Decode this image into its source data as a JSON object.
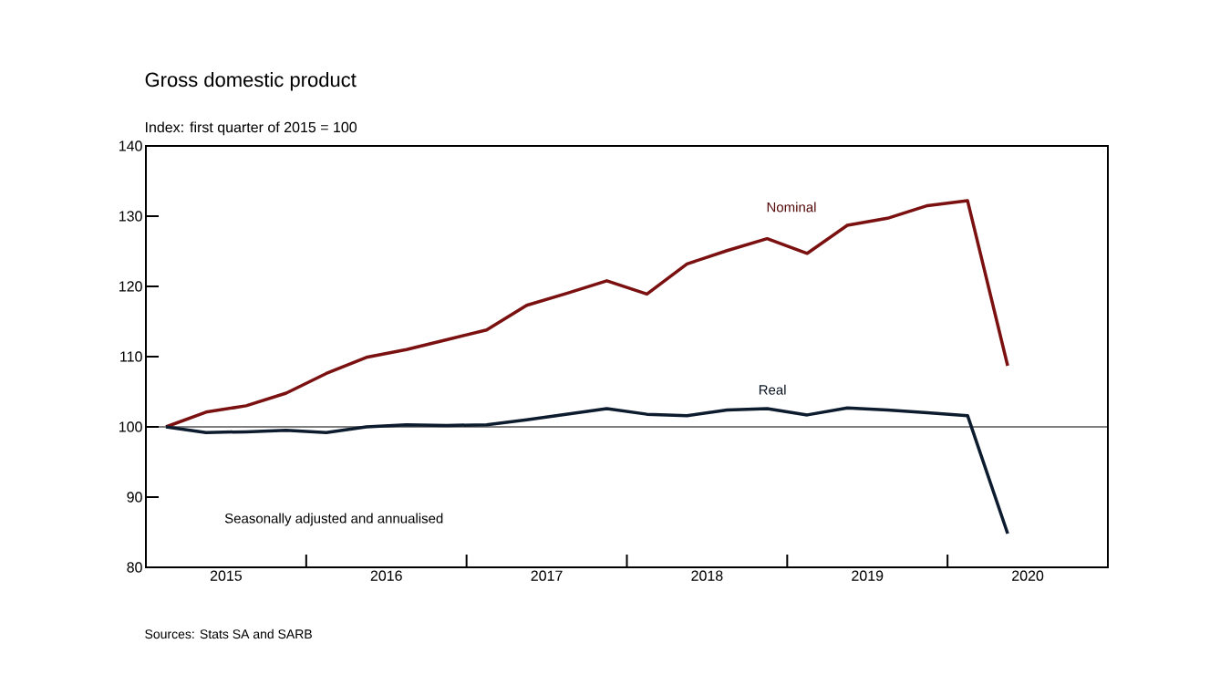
{
  "chart_data": {
    "type": "line",
    "title": "Gross domestic product",
    "subtitle": "Index: first quarter of 2015 = 100",
    "annotations": [
      "Seasonally adjusted and annualised",
      "Sources: Stats SA and SARB"
    ],
    "x": [
      2015.125,
      2015.375,
      2015.625,
      2015.875,
      2016.125,
      2016.375,
      2016.625,
      2016.875,
      2017.125,
      2017.375,
      2017.625,
      2017.875,
      2018.125,
      2018.375,
      2018.625,
      2018.875,
      2019.125,
      2019.375,
      2019.625,
      2019.875,
      2020.125,
      2020.375
    ],
    "series": [
      {
        "name": "Nominal",
        "color": "#7a1010",
        "values": [
          100,
          102.1,
          103.0,
          104.8,
          107.6,
          109.9,
          111.0,
          112.4,
          113.8,
          117.3,
          119.0,
          120.8,
          118.9,
          123.2,
          125.1,
          126.8,
          124.7,
          128.7,
          129.7,
          131.5,
          132.2,
          108.7
        ]
      },
      {
        "name": "Real",
        "color": "#0d1b2e",
        "values": [
          100,
          99.2,
          99.3,
          99.5,
          99.2,
          100,
          100.3,
          100.2,
          100.3,
          101.0,
          101.8,
          102.6,
          101.8,
          101.6,
          102.4,
          102.6,
          101.7,
          102.7,
          102.4,
          102.0,
          101.6,
          84.8
        ]
      }
    ],
    "xlim": [
      2015,
      2021
    ],
    "xticks": [
      {
        "value": 2015.5,
        "label": "2015"
      },
      {
        "value": 2016,
        "label": null
      },
      {
        "value": 2016.5,
        "label": "2016"
      },
      {
        "value": 2017,
        "label": null
      },
      {
        "value": 2017.5,
        "label": "2017"
      },
      {
        "value": 2018,
        "label": null
      },
      {
        "value": 2018.5,
        "label": "2018"
      },
      {
        "value": 2019,
        "label": null
      },
      {
        "value": 2019.5,
        "label": "2019"
      },
      {
        "value": 2020,
        "label": null
      },
      {
        "value": 2020.5,
        "label": "2020"
      }
    ],
    "ylim": [
      80,
      140
    ],
    "yticks": [
      80,
      90,
      100,
      110,
      120,
      130,
      140
    ],
    "ref_lines": [
      {
        "axis": "y",
        "value": 100
      }
    ],
    "grid": false,
    "marker": "none",
    "line_style": "solid"
  }
}
